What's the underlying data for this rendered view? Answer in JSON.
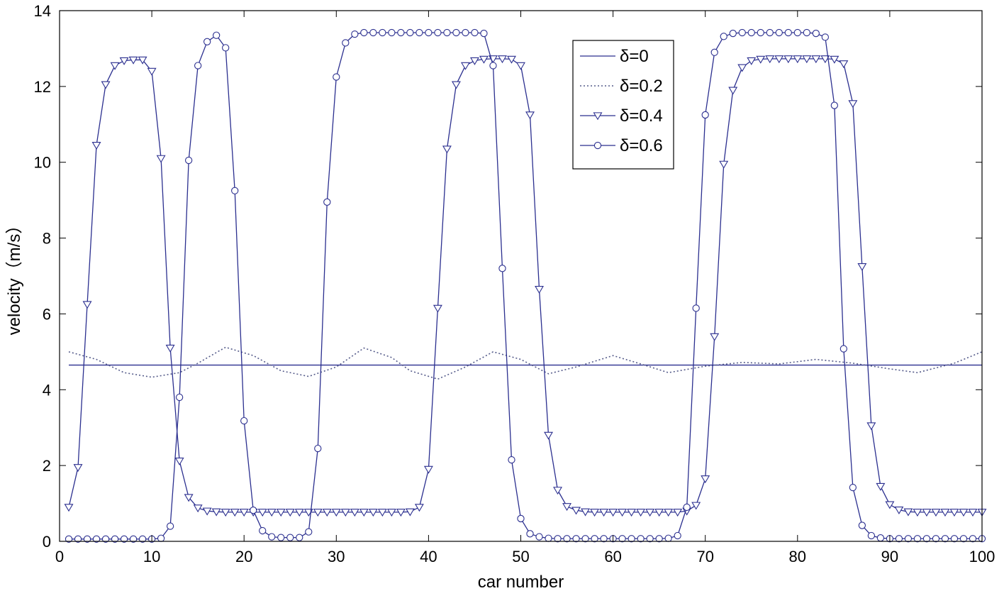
{
  "chart_data": {
    "type": "line",
    "xlabel": "car number",
    "ylabel": "velocity（m/s）",
    "xlim": [
      0,
      100
    ],
    "ylim": [
      0,
      14
    ],
    "xticks": [
      "0",
      "10",
      "20",
      "30",
      "40",
      "50",
      "60",
      "70",
      "80",
      "90",
      "100"
    ],
    "yticks": [
      "0",
      "2",
      "4",
      "6",
      "8",
      "10",
      "12",
      "14"
    ],
    "grid": false,
    "legend_position": "top-center",
    "line_color": "#2b2f8f",
    "series": [
      {
        "name": "δ=0",
        "style": "solid",
        "marker": "none",
        "x": [
          1,
          100
        ],
        "y": [
          4.65,
          4.65
        ]
      },
      {
        "name": "δ=0.2",
        "style": "dotted",
        "marker": "none",
        "x": [
          1,
          4,
          7,
          10,
          13,
          15,
          18,
          21,
          24,
          27,
          30,
          33,
          36,
          38,
          41,
          44,
          47,
          50,
          53,
          56,
          60,
          63,
          66,
          70,
          74,
          78,
          82,
          86,
          90,
          93,
          97,
          100
        ],
        "y": [
          5.0,
          4.8,
          4.45,
          4.33,
          4.45,
          4.7,
          5.12,
          4.9,
          4.5,
          4.35,
          4.6,
          5.1,
          4.85,
          4.5,
          4.28,
          4.6,
          5.0,
          4.8,
          4.42,
          4.6,
          4.9,
          4.68,
          4.45,
          4.62,
          4.72,
          4.68,
          4.8,
          4.7,
          4.55,
          4.45,
          4.7,
          5.0
        ]
      },
      {
        "name": "δ=0.4",
        "style": "solid",
        "marker": "triangle-down",
        "x": [
          1,
          2,
          3,
          4,
          5,
          6,
          7,
          8,
          9,
          10,
          11,
          12,
          13,
          14,
          15,
          16,
          17,
          18,
          19,
          20,
          21,
          22,
          23,
          24,
          25,
          26,
          27,
          28,
          29,
          30,
          31,
          32,
          33,
          34,
          35,
          36,
          37,
          38,
          39,
          40,
          41,
          42,
          43,
          44,
          45,
          46,
          47,
          48,
          49,
          50,
          51,
          52,
          53,
          54,
          55,
          56,
          57,
          58,
          59,
          60,
          61,
          62,
          63,
          64,
          65,
          66,
          67,
          68,
          69,
          70,
          71,
          72,
          73,
          74,
          75,
          76,
          77,
          78,
          79,
          80,
          81,
          82,
          83,
          84,
          85,
          86,
          87,
          88,
          89,
          90,
          91,
          92,
          93,
          94,
          95,
          96,
          97,
          98,
          99,
          100
        ],
        "y": [
          0.9,
          1.95,
          6.25,
          10.45,
          12.05,
          12.55,
          12.68,
          12.7,
          12.7,
          12.4,
          10.1,
          5.1,
          2.12,
          1.16,
          0.88,
          0.8,
          0.78,
          0.77,
          0.77,
          0.77,
          0.77,
          0.77,
          0.77,
          0.77,
          0.77,
          0.77,
          0.77,
          0.77,
          0.77,
          0.77,
          0.77,
          0.77,
          0.77,
          0.77,
          0.77,
          0.77,
          0.77,
          0.78,
          0.9,
          1.9,
          6.15,
          10.35,
          12.05,
          12.55,
          12.68,
          12.72,
          12.73,
          12.73,
          12.72,
          12.55,
          11.25,
          6.65,
          2.8,
          1.35,
          0.92,
          0.82,
          0.78,
          0.77,
          0.77,
          0.77,
          0.77,
          0.77,
          0.77,
          0.77,
          0.77,
          0.77,
          0.77,
          0.8,
          0.95,
          1.65,
          5.4,
          9.95,
          11.9,
          12.5,
          12.68,
          12.72,
          12.73,
          12.73,
          12.73,
          12.73,
          12.73,
          12.73,
          12.73,
          12.72,
          12.6,
          11.55,
          7.25,
          3.05,
          1.45,
          0.97,
          0.83,
          0.78,
          0.77,
          0.77,
          0.77,
          0.77,
          0.77,
          0.77,
          0.77,
          0.77
        ]
      },
      {
        "name": "δ=0.6",
        "style": "solid",
        "marker": "circle",
        "x": [
          1,
          2,
          3,
          4,
          5,
          6,
          7,
          8,
          9,
          10,
          11,
          12,
          13,
          14,
          15,
          16,
          17,
          18,
          19,
          20,
          21,
          22,
          23,
          24,
          25,
          26,
          27,
          28,
          29,
          30,
          31,
          32,
          33,
          34,
          35,
          36,
          37,
          38,
          39,
          40,
          41,
          42,
          43,
          44,
          45,
          46,
          47,
          48,
          49,
          50,
          51,
          52,
          53,
          54,
          55,
          56,
          57,
          58,
          59,
          60,
          61,
          62,
          63,
          64,
          65,
          66,
          67,
          68,
          69,
          70,
          71,
          72,
          73,
          74,
          75,
          76,
          77,
          78,
          79,
          80,
          81,
          82,
          83,
          84,
          85,
          86,
          87,
          88,
          89,
          90,
          91,
          92,
          93,
          94,
          95,
          96,
          97,
          98,
          99,
          100
        ],
        "y": [
          0.06,
          0.06,
          0.06,
          0.06,
          0.06,
          0.06,
          0.06,
          0.06,
          0.06,
          0.06,
          0.08,
          0.4,
          3.8,
          10.05,
          12.55,
          13.18,
          13.35,
          13.02,
          9.25,
          3.18,
          0.82,
          0.28,
          0.12,
          0.1,
          0.1,
          0.1,
          0.25,
          2.45,
          8.95,
          12.25,
          13.15,
          13.38,
          13.42,
          13.42,
          13.42,
          13.42,
          13.42,
          13.42,
          13.42,
          13.42,
          13.42,
          13.42,
          13.42,
          13.42,
          13.42,
          13.4,
          12.55,
          7.2,
          2.15,
          0.6,
          0.2,
          0.12,
          0.08,
          0.07,
          0.07,
          0.07,
          0.07,
          0.07,
          0.07,
          0.07,
          0.07,
          0.07,
          0.07,
          0.07,
          0.07,
          0.08,
          0.15,
          0.9,
          6.15,
          11.25,
          12.9,
          13.32,
          13.4,
          13.42,
          13.42,
          13.42,
          13.42,
          13.42,
          13.42,
          13.42,
          13.42,
          13.4,
          13.3,
          11.5,
          5.08,
          1.42,
          0.42,
          0.15,
          0.09,
          0.07,
          0.07,
          0.07,
          0.07,
          0.07,
          0.07,
          0.07,
          0.07,
          0.07,
          0.07,
          0.07
        ]
      }
    ]
  }
}
